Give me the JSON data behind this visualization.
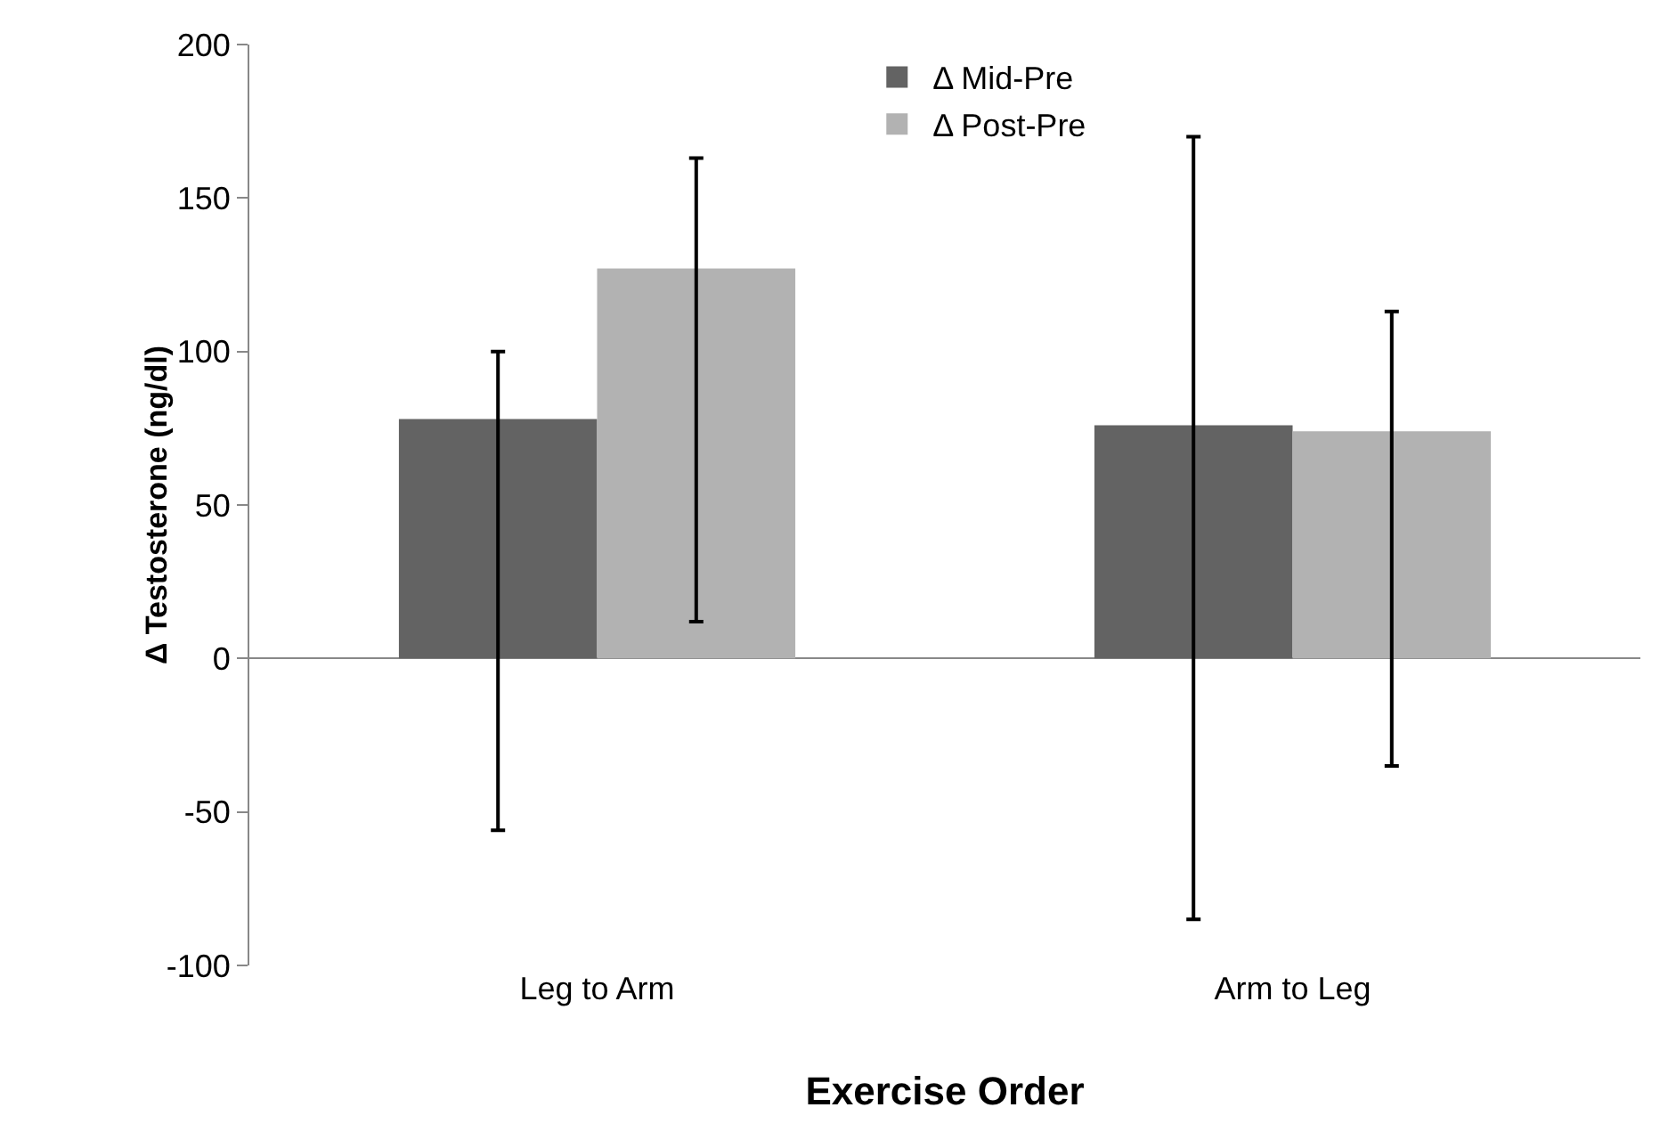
{
  "chart_data": {
    "type": "bar",
    "xlabel": "Exercise Order",
    "ylabel": "Δ Testosterone (ng/dl)",
    "categories": [
      "Leg to Arm",
      "Arm to Leg"
    ],
    "series": [
      {
        "name": "Δ Mid-Pre",
        "color": "#636363",
        "values": [
          78,
          76
        ],
        "errors": [
          [
            -56,
            100
          ],
          [
            -85,
            170
          ]
        ]
      },
      {
        "name": "Δ Post-Pre",
        "color": "#b2b2b2",
        "values": [
          127,
          74
        ],
        "errors": [
          [
            12,
            163
          ],
          [
            -35,
            113
          ]
        ]
      }
    ],
    "ylim": [
      -100,
      200
    ],
    "yticks": [
      -100,
      -50,
      0,
      50,
      100,
      150,
      200
    ],
    "legend": "top"
  }
}
